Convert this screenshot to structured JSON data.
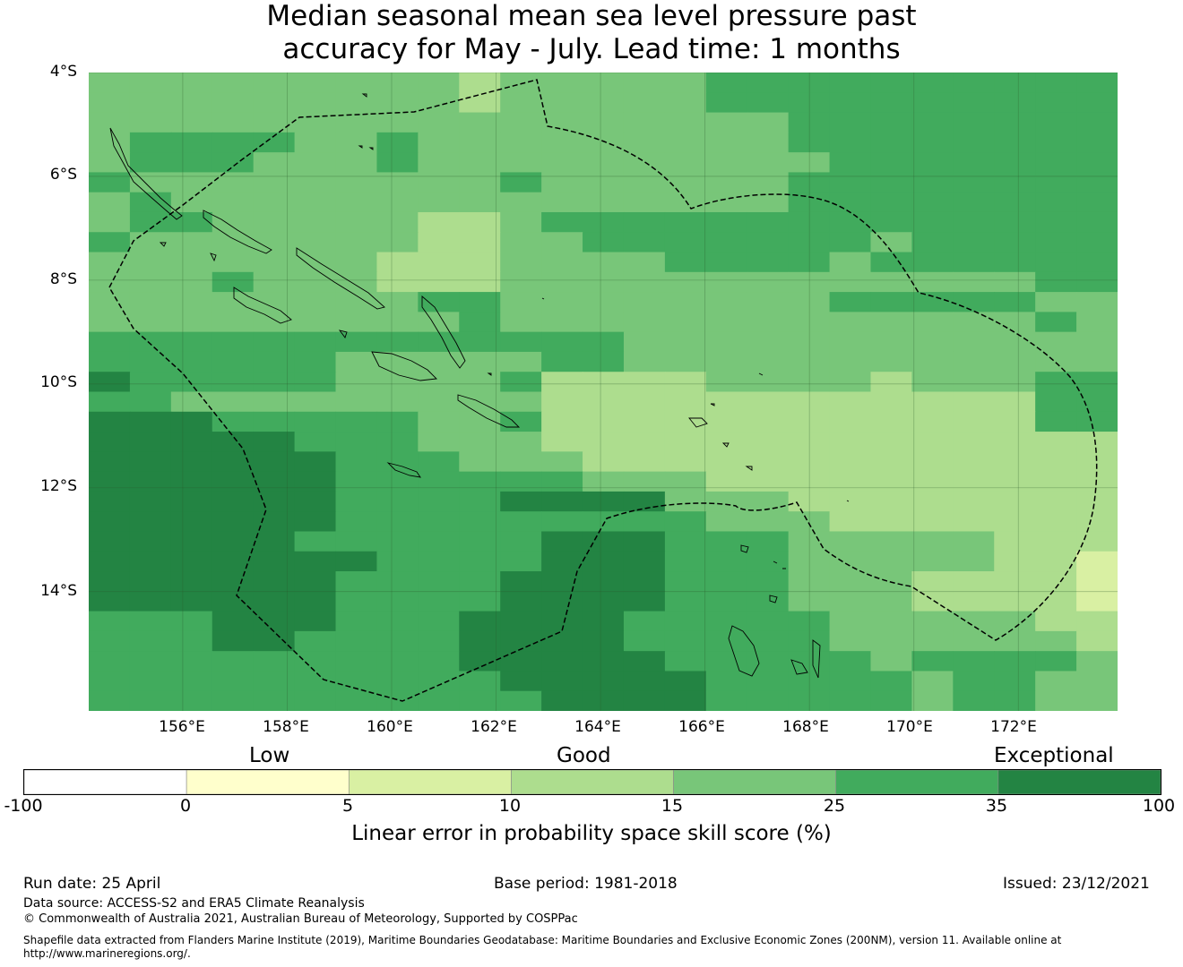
{
  "title_line1": "Median seasonal mean sea level pressure past",
  "title_line2": "accuracy for May - July. Lead time: 1 months",
  "map": {
    "lat_ticks": [
      "4°S",
      "6°S",
      "8°S",
      "10°S",
      "12°S",
      "14°S"
    ],
    "lon_ticks": [
      "156°E",
      "158°E",
      "160°E",
      "162°E",
      "164°E",
      "166°E",
      "168°E",
      "170°E",
      "172°E"
    ],
    "extent": {
      "lon_min": 154.2,
      "lon_max": 173.9,
      "lat_top": -4.0,
      "lat_bottom": -16.3
    },
    "palette": {
      "a": "#d9f0a3",
      "b": "#addd8e",
      "c": "#78c679",
      "d": "#41ab5d",
      "e": "#238443"
    },
    "grid_rows": [
      "cccccccccbcccccdddddddddd",
      "cccccccccbcccccdddddddddd",
      "cccccccccccccccccdddddddd",
      "cddddccdcccccccccdddddddd",
      "cdddcccdccccccccccddddddd",
      "dcccccccccdccccccdddddddd",
      "cdcccccccccccccccdddddddd",
      "cddcccccbbcdddddddddddddd",
      "dcccccccbbccdddddddcddddd",
      "cccccccbbbccccddddcdddddd",
      "cccdcccbbbcccccccccccccdd",
      "ccccccccddccccccccdddddcc",
      "cccccccccdcccccccccccccdc",
      "dddddddddddddcccccccccccc",
      "ddddddcccccddcccccccccccc",
      "edddddccccdbbbbccccbcccdd",
      "ddcccccccccbbbbbbbbbbbbdd",
      "eeedddddccdbbbbbbbbbbbbdd",
      "eeeeedddcccbbbbbbbbbbbbbb",
      "eeeeeedddcccbbbbbbbbbbbbb",
      "eeeeeeddddddcccbbbbbbbbbb",
      "eeeeeeddddeeeecccbbbbbbbb",
      "eeeeeedddddddddcccbbbbbbb",
      "eeeeeddddddeeedddcccccbbb",
      "eeeeeeeddddeeedddcccccbba",
      "eeeeeeddddeeeedddcccbbbba",
      "eeeeeeddddeeeedddcccbbbba",
      "dddeeedddeeeedddddcccccbb",
      "dddeeddddeeeedddddccccccb",
      "dddddddddeeeeedddddcddddc",
      "ddddddddddeeeeedddddcddcc",
      "dddddddddddeeeedddddcddcc"
    ]
  },
  "legend": {
    "categories": [
      "Low",
      "Good",
      "Exceptional"
    ],
    "bins": [
      {
        "from": -100,
        "to": 0,
        "color": "#ffffff"
      },
      {
        "from": 0,
        "to": 5,
        "color": "#ffffcc"
      },
      {
        "from": 5,
        "to": 10,
        "color": "#d9f0a3"
      },
      {
        "from": 10,
        "to": 15,
        "color": "#addd8e"
      },
      {
        "from": 15,
        "to": 25,
        "color": "#78c679"
      },
      {
        "from": 25,
        "to": 35,
        "color": "#41ab5d"
      },
      {
        "from": 35,
        "to": 100,
        "color": "#238443"
      }
    ],
    "ticks": [
      "-100",
      "0",
      "5",
      "10",
      "15",
      "25",
      "35",
      "100"
    ],
    "label": "Linear error in probability space skill score (%)"
  },
  "footer": {
    "run_date": "Run date: 25 April",
    "base_period": "Base period: 1981-2018",
    "issued": "Issued: 23/12/2021",
    "data_source": "Data source: ACCESS-S2 and ERA5 Climate Reanalysis",
    "copyright": "© Commonwealth of Australia 2021, Australian Bureau of Meteorology, Supported by COSPPac",
    "shapefile_line1": "Shapefile data extracted from Flanders Marine Institute (2019), Maritime Boundaries Geodatabase: Maritime Boundaries and Exclusive Economic Zones (200NM), version 11. Available online at",
    "shapefile_line2": "http://www.marineregions.org/."
  }
}
